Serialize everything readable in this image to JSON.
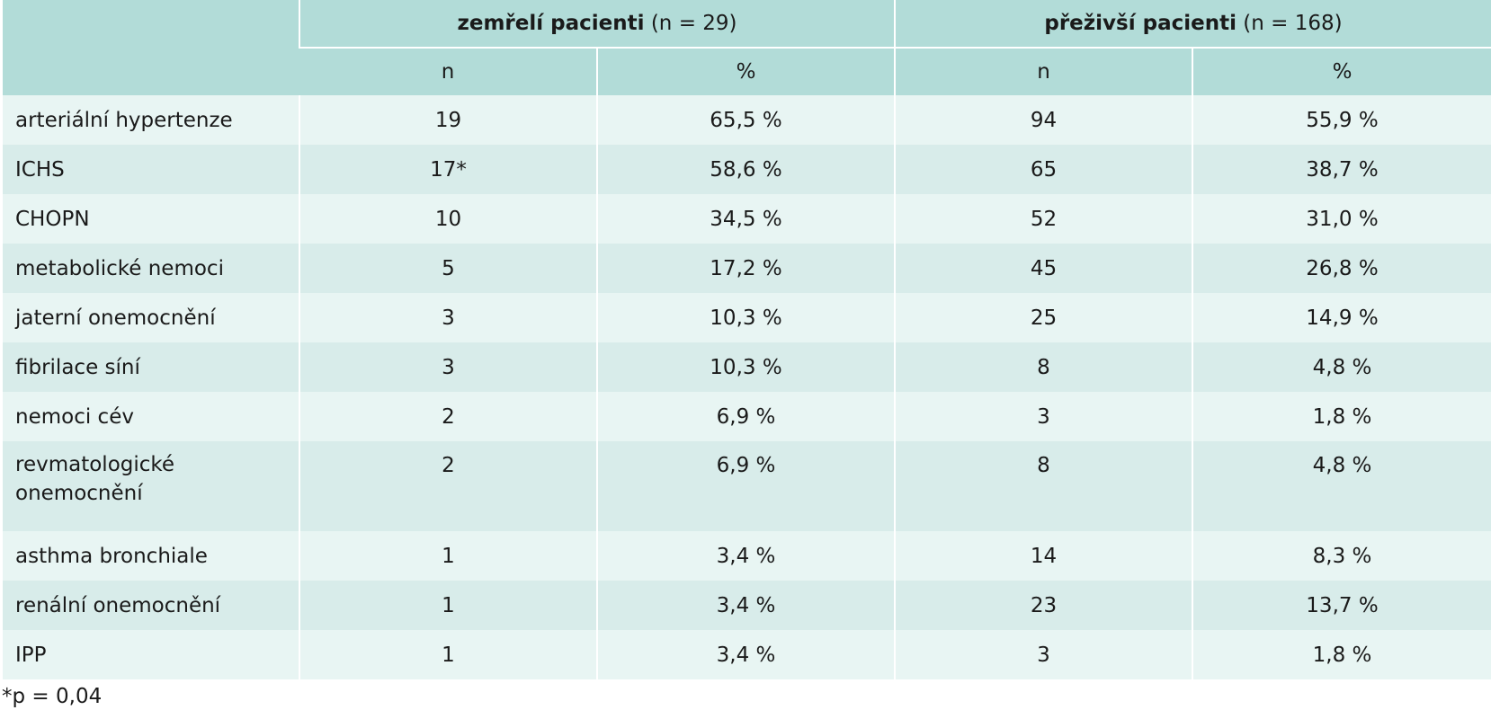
{
  "table": {
    "groups": [
      {
        "name": "zemřelí pacienti",
        "count": "(n = 29)"
      },
      {
        "name": "přeživší pacienti",
        "count": "(n = 168)"
      }
    ],
    "subheaders": [
      "n",
      "%",
      "n",
      "%"
    ],
    "rows": [
      {
        "label": "arteriální hypertenze",
        "values": [
          "19",
          "65,5 %",
          "94",
          "55,9 %"
        ]
      },
      {
        "label": "ICHS",
        "values": [
          "17*",
          "58,6 %",
          "65",
          "38,7 %"
        ]
      },
      {
        "label": "CHOPN",
        "values": [
          "10",
          "34,5 %",
          "52",
          "31,0 %"
        ]
      },
      {
        "label": "metabolické nemoci",
        "values": [
          "5",
          "17,2 %",
          "45",
          "26,8 %"
        ]
      },
      {
        "label": "jaterní onemocnění",
        "values": [
          "3",
          "10,3 %",
          "25",
          "14,9 %"
        ]
      },
      {
        "label": "fibrilace síní",
        "values": [
          "3",
          "10,3 %",
          "8",
          "4,8 %"
        ]
      },
      {
        "label": "nemoci cév",
        "values": [
          "2",
          "6,9 %",
          "3",
          "1,8 %"
        ]
      },
      {
        "label": "revmatologické onemocnění",
        "values": [
          "2",
          "6,9 %",
          "8",
          "4,8 %"
        ]
      },
      {
        "label": "asthma bronchiale",
        "values": [
          "1",
          "3,4 %",
          "14",
          "8,3 %"
        ]
      },
      {
        "label": "renální onemocnění",
        "values": [
          "1",
          "3,4 %",
          "23",
          "13,7 %"
        ]
      },
      {
        "label": "IPP",
        "values": [
          "1",
          "3,4 %",
          "3",
          "1,8 %"
        ]
      }
    ]
  },
  "footnote": "*p = 0,04"
}
